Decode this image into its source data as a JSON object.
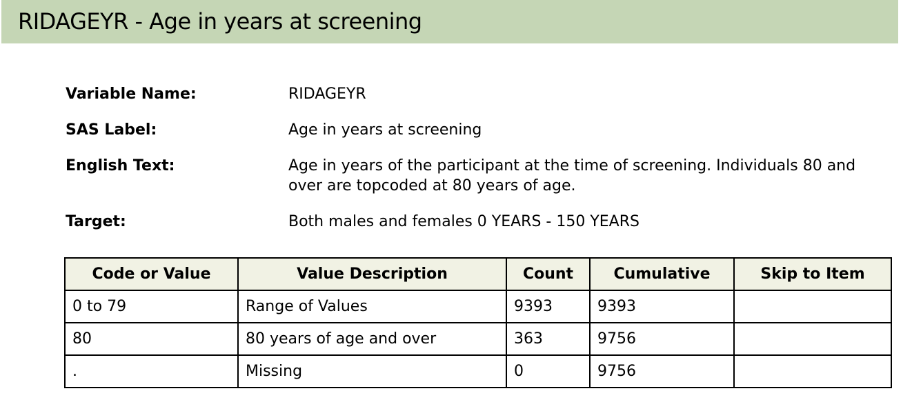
{
  "title": "RIDAGEYR - Age in years at screening",
  "meta": {
    "variable_name": {
      "label": "Variable Name:",
      "value": "RIDAGEYR"
    },
    "sas_label": {
      "label": "SAS Label:",
      "value": "Age in years at screening"
    },
    "english_text": {
      "label": "English Text:",
      "value": "Age in years of the participant at the time of screening. Individuals 80 and over are topcoded at 80 years of age."
    },
    "target": {
      "label": "Target:",
      "value": "Both males and females 0 YEARS - 150 YEARS"
    }
  },
  "table": {
    "headers": [
      "Code or Value",
      "Value Description",
      "Count",
      "Cumulative",
      "Skip to Item"
    ],
    "rows": [
      [
        "0 to 79",
        "Range of Values",
        "9393",
        "9393",
        ""
      ],
      [
        "80",
        "80 years of age and over",
        "363",
        "9756",
        ""
      ],
      [
        ".",
        "Missing",
        "0",
        "9756",
        ""
      ]
    ]
  },
  "colors": {
    "title_bar_bg": "#c5d6b5",
    "table_header_bg": "#f1f2e4"
  }
}
